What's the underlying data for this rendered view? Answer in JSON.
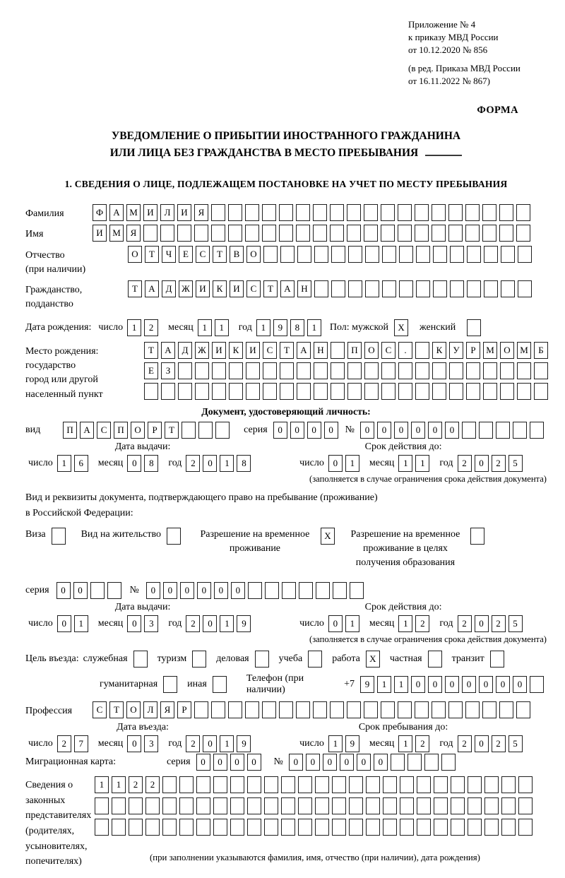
{
  "colors": {
    "paper": "#ffffff",
    "ink": "#000000",
    "box_border": "#1f1f1f"
  },
  "header": {
    "appendix_line1": "Приложение № 4",
    "appendix_line2": "к приказу МВД России",
    "appendix_line3": "от 10.12.2020 № 856",
    "revision_line1": "(в ред. Приказа МВД России",
    "revision_line2": "от 16.11.2022 № 867)",
    "form_word": "ФОРМА"
  },
  "title": {
    "line1": "УВЕДОМЛЕНИЕ О ПРИБЫТИИ ИНОСТРАННОГО ГРАЖДАНИНА",
    "line2": "ИЛИ ЛИЦА БЕЗ ГРАЖДАНСТВА В МЕСТО ПРЕБЫВАНИЯ"
  },
  "section1_heading": "1. СВЕДЕНИЯ О ЛИЦЕ, ПОДЛЕЖАЩЕМ ПОСТАНОВКЕ НА УЧЕТ ПО МЕСТУ ПРЕБЫВАНИЯ",
  "words": {
    "day": "число",
    "month": "месяц",
    "year": "год",
    "series": "серия",
    "number": "№"
  },
  "person": {
    "surname": {
      "label": "Фамилия",
      "value": "ФАМИЛИЯ",
      "len": 26
    },
    "given_name": {
      "label": "Имя",
      "value": "ИМЯ",
      "len": 26
    },
    "patronymic": {
      "label_line1": "Отчество",
      "label_line2": "(при наличии)",
      "value": "ОТЧЕСТВО",
      "len": 24
    },
    "citizenship": {
      "label_line1": "Гражданство,",
      "label_line2": "подданство",
      "value": "ТАДЖИКИСТАН",
      "len": 24
    },
    "birth_date_label": "Дата рождения:",
    "birth_date": {
      "day": "12",
      "month": "11",
      "year": "1981"
    },
    "sex": {
      "label": "Пол: мужской",
      "male_mark": "X",
      "female_label": "женский",
      "female_mark": ""
    },
    "birth_place": {
      "label_line1": "Место рождения:",
      "label_line2": "государство",
      "label_line3": "город или другой",
      "label_line4": "населенный пункт",
      "row1": {
        "value": "ТАДЖИКИСТАН ПОС. КУРМОМБ",
        "len": 24
      },
      "row2": {
        "value": "ЕЗ",
        "len": 24
      },
      "row3": {
        "value": "",
        "len": 24
      }
    }
  },
  "identity_doc": {
    "heading": "Документ, удостоверяющий личность:",
    "kind_label": "вид",
    "kind": {
      "value": "ПАСПОРТ",
      "len": 10
    },
    "series": {
      "value": "0000",
      "len": 4
    },
    "number": {
      "value": "000000",
      "len": 11
    },
    "issue_heading": "Дата выдачи:",
    "issue": {
      "day": "16",
      "month": "08",
      "year": "2018"
    },
    "expiry_heading": "Срок действия до:",
    "expiry": {
      "day": "01",
      "month": "11",
      "year": "2025"
    },
    "note": "(заполняется в случае ограничения срока действия документа)"
  },
  "residence_doc": {
    "intro_line1": "Вид и реквизиты документа, подтверждающего право на пребывание (проживание)",
    "intro_line2": "в Российской Федерации:",
    "visa_label": "Виза",
    "visa_mark": "",
    "residence_permit_label": "Вид на жительство",
    "residence_permit_mark": "",
    "temp_permit_label": "Разрешение на временное проживание",
    "temp_permit_mark": "X",
    "edu_permit_label": "Разрешение на временное проживание в целях получения образования",
    "edu_permit_mark": "",
    "series": {
      "value": "00",
      "len": 4
    },
    "number": {
      "value": "000000",
      "len": 13
    },
    "issue_heading": "Дата выдачи:",
    "issue": {
      "day": "01",
      "month": "03",
      "year": "2019"
    },
    "expiry_heading": "Срок действия до:",
    "expiry": {
      "day": "01",
      "month": "12",
      "year": "2025"
    },
    "note": "(заполняется в случае ограничения срока действия документа)"
  },
  "purpose": {
    "label": "Цель въезда:",
    "options": [
      {
        "label": "служебная",
        "mark": ""
      },
      {
        "label": "туризм",
        "mark": ""
      },
      {
        "label": "деловая",
        "mark": ""
      },
      {
        "label": "учеба",
        "mark": ""
      },
      {
        "label": "работа",
        "mark": "X"
      },
      {
        "label": "частная",
        "mark": ""
      },
      {
        "label": "транзит",
        "mark": ""
      },
      {
        "label": "гуманитарная",
        "mark": ""
      },
      {
        "label": "иная",
        "mark": ""
      }
    ],
    "phone_label": "Телефон (при наличии)",
    "phone_prefix": "+7",
    "phone": {
      "value": "9110000000",
      "len": 11
    }
  },
  "profession": {
    "label": "Профессия",
    "value": "СТОЛЯР",
    "len": 26
  },
  "entry": {
    "date_heading": "Дата въезда:",
    "date": {
      "day": "27",
      "month": "03",
      "year": "2019"
    },
    "until_heading": "Срок пребывания до:",
    "until": {
      "day": "19",
      "month": "12",
      "year": "2025"
    }
  },
  "migration_card": {
    "label": "Миграционная карта:",
    "series": {
      "value": "0000",
      "len": 4
    },
    "number": {
      "value": "000000",
      "len": 10
    }
  },
  "representatives": {
    "label_line1": "Сведения о",
    "label_line2": "законных",
    "label_line3": "представителях",
    "label_line4": "(родителях,",
    "label_line5": "усыновителях,",
    "label_line6": "попечителях)",
    "row1": {
      "value": "1122",
      "len": 26
    },
    "row2": {
      "value": "",
      "len": 26
    },
    "row3": {
      "value": "",
      "len": 26
    },
    "note": "(при заполнении указываются фамилия, имя, отчество (при наличии), дата рождения)"
  }
}
